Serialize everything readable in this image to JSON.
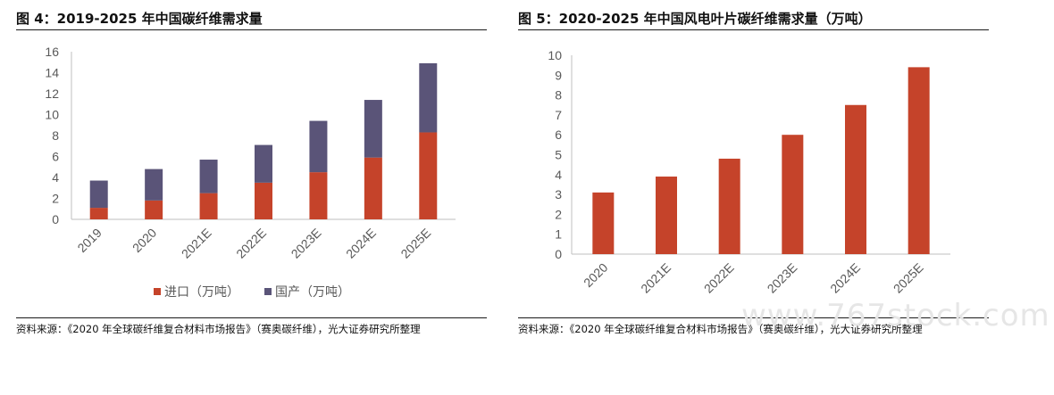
{
  "colors": {
    "import": "#c5432a",
    "domestic": "#5a5478",
    "bar": "#c5432a",
    "axis": "#bfbfbf",
    "text": "#595959"
  },
  "left": {
    "title": "图 4：2019-2025 年中国碳纤维需求量",
    "source": "资料来源：《2020 年全球碳纤维复合材料市场报告》（赛奥碳纤维），光大证券研究所整理"
  },
  "right": {
    "title": "图 5：2020-2025 年中国风电叶片碳纤维需求量（万吨）",
    "source": "资料来源：《2020 年全球碳纤维复合材料市场报告》（赛奥碳纤维），光大证券研究所整理"
  },
  "watermark": "www.767stock.com",
  "chart_data": [
    {
      "type": "bar",
      "stacked": true,
      "categories": [
        "2019",
        "2020",
        "2021E",
        "2022E",
        "2023E",
        "2024E",
        "2025E"
      ],
      "series": [
        {
          "name": "进口（万吨）",
          "values": [
            1.1,
            1.8,
            2.5,
            3.5,
            4.5,
            5.9,
            8.3
          ]
        },
        {
          "name": "国产（万吨）",
          "values": [
            2.6,
            3.0,
            3.2,
            3.6,
            4.9,
            5.5,
            6.6
          ]
        }
      ],
      "yticks": [
        0,
        2,
        4,
        6,
        8,
        10,
        12,
        14,
        16
      ],
      "ylim": [
        0,
        16
      ],
      "legend": "bottom"
    },
    {
      "type": "bar",
      "categories": [
        "2020",
        "2021E",
        "2022E",
        "2023E",
        "2024E",
        "2025E"
      ],
      "values": [
        3.1,
        3.9,
        4.8,
        6.0,
        7.5,
        9.4
      ],
      "yticks": [
        0,
        1,
        2,
        3,
        4,
        5,
        6,
        7,
        8,
        9,
        10
      ],
      "ylim": [
        0,
        10
      ]
    }
  ]
}
